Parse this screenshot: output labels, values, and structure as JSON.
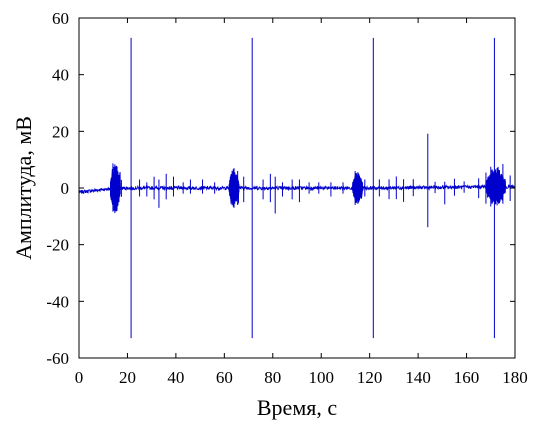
{
  "chart_data": {
    "type": "line",
    "title": "",
    "xlabel": "Время, с",
    "ylabel": "Амплитуда, мВ",
    "xlim": [
      0,
      180
    ],
    "ylim": [
      -60,
      60
    ],
    "xticks": [
      0,
      20,
      40,
      60,
      80,
      100,
      120,
      140,
      160,
      180
    ],
    "yticks": [
      60,
      40,
      20,
      0,
      -20,
      -40,
      -60
    ],
    "grid": false,
    "legend": "none",
    "series": [
      {
        "color": "#0000cc",
        "baseline": [
          [
            0,
            -1.5
          ],
          [
            5,
            -1
          ],
          [
            10,
            -0.5
          ],
          [
            20,
            0
          ],
          [
            40,
            0
          ],
          [
            60,
            0
          ],
          [
            90,
            0
          ],
          [
            120,
            0
          ],
          [
            150,
            0.2
          ],
          [
            170,
            0.5
          ],
          [
            180,
            0.4
          ]
        ],
        "bursts": [
          {
            "x": [
              13,
              17
            ],
            "amp": 9
          },
          {
            "x": [
              62,
              66
            ],
            "amp": 7
          },
          {
            "x": [
              113,
              117
            ],
            "amp": 6
          },
          {
            "x": [
              168,
              176
            ],
            "amp": 7
          }
        ],
        "spikes": [
          [
            14,
            9,
            -8
          ],
          [
            15.5,
            8,
            -8
          ],
          [
            17.5,
            3,
            -3
          ],
          [
            25,
            3,
            -3
          ],
          [
            28,
            2,
            -3
          ],
          [
            31,
            4,
            -4
          ],
          [
            33,
            3,
            -7
          ],
          [
            36,
            5,
            -4
          ],
          [
            39,
            4,
            -3
          ],
          [
            43,
            2,
            -2
          ],
          [
            46,
            3,
            -2
          ],
          [
            51,
            3,
            -2
          ],
          [
            56,
            2,
            -2
          ],
          [
            64,
            7,
            -7
          ],
          [
            65.5,
            6,
            -6
          ],
          [
            68,
            4,
            -5
          ],
          [
            76,
            3,
            -4
          ],
          [
            79,
            5,
            -5
          ],
          [
            81,
            4,
            -9
          ],
          [
            84,
            2,
            -3
          ],
          [
            88,
            3,
            -4
          ],
          [
            91,
            3,
            -5
          ],
          [
            95,
            2,
            -2
          ],
          [
            99,
            2,
            -2
          ],
          [
            104,
            2,
            -3
          ],
          [
            109,
            2,
            -2
          ],
          [
            114,
            6,
            -6
          ],
          [
            115.5,
            5,
            -5
          ],
          [
            118,
            3,
            -3
          ],
          [
            124,
            3,
            -3
          ],
          [
            128,
            3,
            -4
          ],
          [
            131,
            4,
            -4
          ],
          [
            134,
            3,
            -5
          ],
          [
            138,
            3,
            -3
          ],
          [
            144,
            19,
            -14
          ],
          [
            147,
            2,
            -2
          ],
          [
            151,
            2,
            -6
          ],
          [
            155,
            3,
            -3
          ],
          [
            159,
            2,
            -2
          ],
          [
            165,
            3,
            -4
          ],
          [
            168,
            5,
            -6
          ],
          [
            170,
            7,
            -7
          ],
          [
            173,
            7,
            -5
          ],
          [
            175,
            8,
            -6
          ],
          [
            178,
            4,
            -5
          ]
        ],
        "peaks": [
          {
            "x": 21.5,
            "max": 53,
            "min": -53
          },
          {
            "x": 71.5,
            "max": 53,
            "min": -53
          },
          {
            "x": 121.5,
            "max": 53,
            "min": -53
          },
          {
            "x": 171.5,
            "max": 53,
            "min": -53
          }
        ]
      }
    ]
  }
}
